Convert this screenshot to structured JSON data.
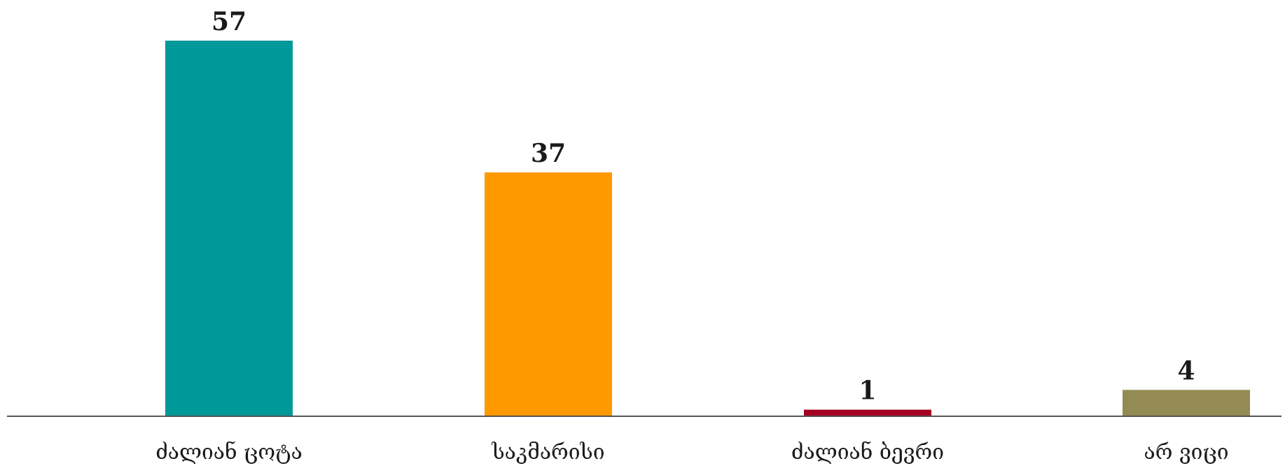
{
  "chart_data": {
    "type": "bar",
    "categories": [
      "ძალიან ცოტა",
      "საკმარისი",
      "ძალიან ბევრი",
      "არ ვიცი"
    ],
    "values": [
      57,
      37,
      1,
      4
    ],
    "colors": [
      "#009999",
      "#FF9900",
      "#A50021",
      "#948A54"
    ],
    "title": "",
    "xlabel": "",
    "ylabel": "",
    "ylim": [
      0,
      57
    ],
    "grid": false,
    "legend": "none",
    "data_labels": true
  }
}
